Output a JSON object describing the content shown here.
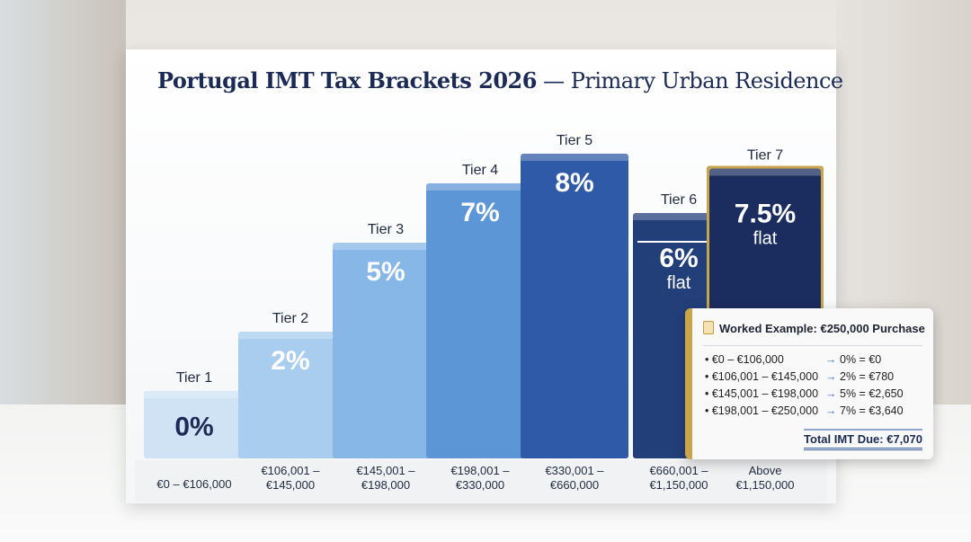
{
  "chart_data": {
    "type": "bar",
    "title": "Portugal IMT Tax Brackets 2026",
    "subtitle": "— Primary Urban Residence",
    "categories": [
      "€0 – €106,000",
      "€106,001 – €145,000",
      "€145,001 – €198,000",
      "€198,001 – €330,000",
      "€330,001 – €660,000",
      "€660,001 – €1,150,000",
      "Above €1,150,000"
    ],
    "category_lines": [
      [
        "€0 – €106,000"
      ],
      [
        "€106,001 –",
        "€145,000"
      ],
      [
        "€145,001 –",
        "€198,000"
      ],
      [
        "€198,001 –",
        "€330,000"
      ],
      [
        "€330,001 –",
        "€660,000"
      ],
      [
        "€660,001 –",
        "€1,150,000"
      ],
      [
        "Above",
        "€1,150,000"
      ]
    ],
    "tiers": [
      "Tier 1",
      "Tier 2",
      "Tier 3",
      "Tier 4",
      "Tier 5",
      "Tier 6",
      "Tier 7"
    ],
    "values": [
      0,
      2,
      5,
      7,
      8,
      6,
      7.5
    ],
    "value_labels": [
      "0%",
      "2%",
      "5%",
      "7%",
      "8%",
      "6%",
      "7.5%"
    ],
    "value_notes": [
      "",
      "",
      "",
      "",
      "",
      "flat",
      "flat"
    ],
    "colors": [
      "#cfe3f5",
      "#a9cdee",
      "#86b7e6",
      "#5d96d6",
      "#2e5aa8",
      "#233f7a",
      "#1b2d5e"
    ],
    "accent_gold": "#c9a44a",
    "units": "%"
  },
  "example": {
    "title": "Worked Example: €250,000 Purchase",
    "icon": "clipboard-icon",
    "rows": [
      {
        "range": "€0 – €106,000",
        "calc": "0% = €0"
      },
      {
        "range": "€106,001 – €145,000",
        "calc": "2% = €780"
      },
      {
        "range": "€145,001 – €198,000",
        "calc": "5% = €2,650"
      },
      {
        "range": "€198,001 – €250,000",
        "calc": "7% = €3,640"
      }
    ],
    "total": "Total IMT Due: €7,070"
  }
}
